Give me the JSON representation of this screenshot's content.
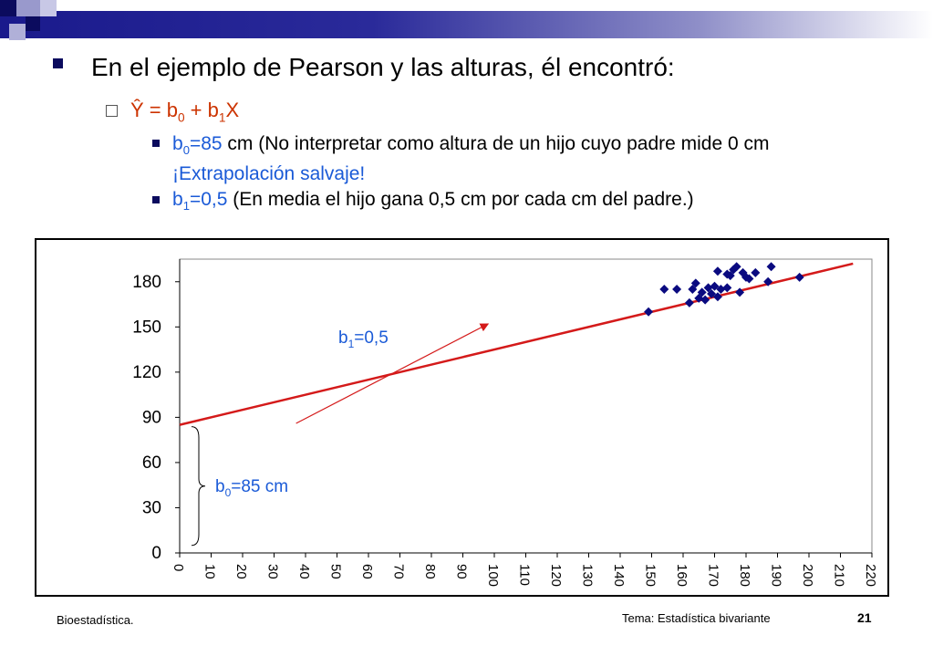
{
  "slide": {
    "bullet1": "En el ejemplo de Pearson y las alturas, él encontró:",
    "eq": {
      "yhat": "Ŷ = b",
      "sub0": "0",
      "plus": " + b",
      "sub1": "1",
      "x": "X"
    },
    "b0_line": {
      "b": "b",
      "sub": "0",
      "val": "=85",
      "text1": " cm (No interpretar como altura de un hijo cuyo padre mide 0 cm ",
      "extra": "¡Extrapolación salvaje!"
    },
    "b1_line": {
      "b": "b",
      "sub": "1",
      "val": "=0,5",
      "text": " (En media el hijo gana 0,5 cm por cada cm del padre.)"
    }
  },
  "chart_data": {
    "type": "scatter",
    "xlim": [
      0,
      220
    ],
    "ylim": [
      0,
      195
    ],
    "x_ticks": [
      "0",
      "10",
      "20",
      "30",
      "40",
      "50",
      "60",
      "70",
      "80",
      "90",
      "100",
      "110",
      "120",
      "130",
      "140",
      "150",
      "160",
      "170",
      "180",
      "190",
      "200",
      "210",
      "220"
    ],
    "y_ticks": [
      "0",
      "30",
      "60",
      "90",
      "120",
      "150",
      "180"
    ],
    "points": [
      [
        149,
        160
      ],
      [
        154,
        175
      ],
      [
        158,
        175
      ],
      [
        162,
        166
      ],
      [
        163,
        175
      ],
      [
        164,
        179
      ],
      [
        165,
        169
      ],
      [
        166,
        173
      ],
      [
        167,
        168
      ],
      [
        168,
        176
      ],
      [
        169,
        172
      ],
      [
        170,
        177
      ],
      [
        171,
        170
      ],
      [
        171,
        187
      ],
      [
        172,
        175
      ],
      [
        174,
        185
      ],
      [
        174,
        176
      ],
      [
        175,
        184
      ],
      [
        176,
        188
      ],
      [
        177,
        190
      ],
      [
        178,
        173
      ],
      [
        179,
        186
      ],
      [
        180,
        183
      ],
      [
        181,
        182
      ],
      [
        183,
        186
      ],
      [
        187,
        180
      ],
      [
        188,
        190
      ],
      [
        197,
        183
      ]
    ],
    "regression": {
      "intercept": 85,
      "slope": 0.5,
      "x_start": 0,
      "x_end": 214
    },
    "annotations": {
      "slope": {
        "b": "b",
        "sub": "1",
        "val": "=0,5"
      },
      "intercept": {
        "b": "b",
        "sub": "0",
        "val": "=85 cm"
      }
    },
    "colors": {
      "points": "#0a0a80",
      "line": "#d41a1a",
      "label": "#1a5ad7"
    }
  },
  "footer": {
    "left": "Bioestadística.",
    "middle": "Tema: Estadística bivariante",
    "page": "21"
  }
}
